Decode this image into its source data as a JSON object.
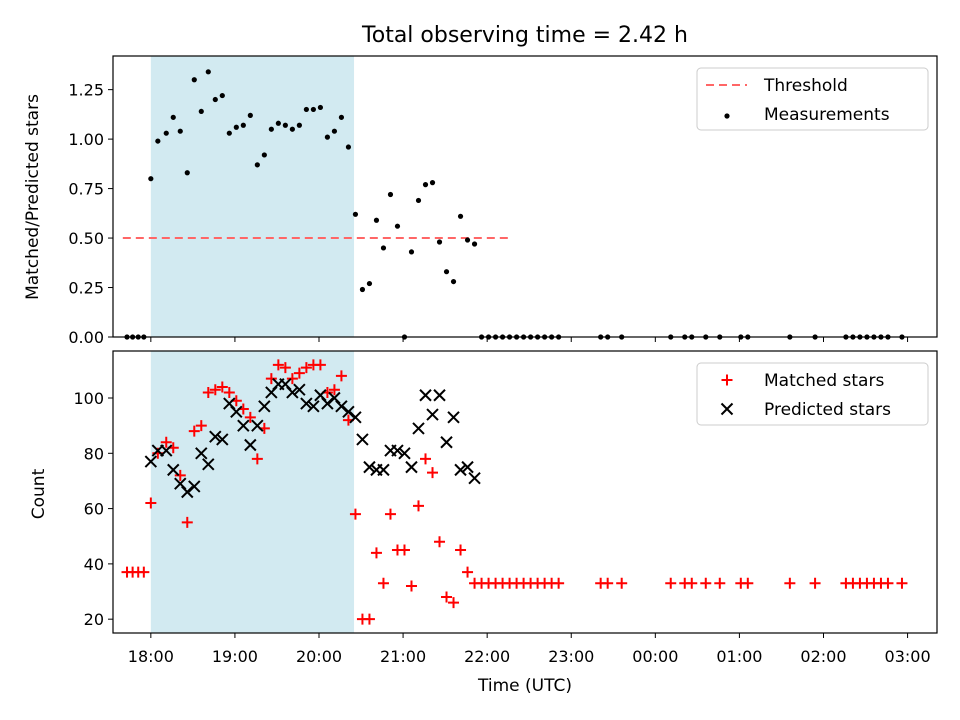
{
  "title": "Total observing time = 2.42 h",
  "xlabel": "Time (UTC)",
  "x_ticks": [
    "18:00",
    "19:00",
    "20:00",
    "21:00",
    "22:00",
    "23:00",
    "00:00",
    "01:00",
    "02:00",
    "03:00"
  ],
  "colors": {
    "shade": "#add8e6",
    "threshold": "#ff6666",
    "measurements": "#000000",
    "matched": "#ff0000",
    "predicted": "#000000"
  },
  "chart_data": [
    {
      "type": "scatter",
      "ylabel": "Matched/Predicted stars",
      "x_range": [
        "17:33",
        "03:21"
      ],
      "ylim": [
        0,
        1.42
      ],
      "y_ticks": [
        "0.00",
        "0.25",
        "0.50",
        "0.75",
        "1.00",
        "1.25"
      ],
      "shaded_region": [
        "18:00",
        "20:25"
      ],
      "threshold": {
        "label": "Threshold",
        "value": 0.5,
        "x_start": "17:40",
        "x_end": "22:15"
      },
      "legend": {
        "position": "top-right",
        "entries": [
          "Threshold",
          "Measurements"
        ]
      },
      "series": [
        {
          "name": "Measurements",
          "points": [
            [
              "17:43",
              0
            ],
            [
              "17:47",
              0
            ],
            [
              "17:51",
              0
            ],
            [
              "17:55",
              0
            ],
            [
              "18:00",
              0.8
            ],
            [
              "18:05",
              0.99
            ],
            [
              "18:11",
              1.03
            ],
            [
              "18:16",
              1.11
            ],
            [
              "18:21",
              1.04
            ],
            [
              "18:26",
              0.83
            ],
            [
              "18:31",
              1.3
            ],
            [
              "18:36",
              1.14
            ],
            [
              "18:41",
              1.34
            ],
            [
              "18:46",
              1.2
            ],
            [
              "18:51",
              1.22
            ],
            [
              "18:56",
              1.03
            ],
            [
              "19:01",
              1.06
            ],
            [
              "19:06",
              1.07
            ],
            [
              "19:11",
              1.12
            ],
            [
              "19:16",
              0.87
            ],
            [
              "19:21",
              0.92
            ],
            [
              "19:26",
              1.05
            ],
            [
              "19:31",
              1.08
            ],
            [
              "19:36",
              1.07
            ],
            [
              "19:41",
              1.05
            ],
            [
              "19:46",
              1.07
            ],
            [
              "19:51",
              1.15
            ],
            [
              "19:56",
              1.15
            ],
            [
              "20:01",
              1.16
            ],
            [
              "20:06",
              1.01
            ],
            [
              "20:11",
              1.04
            ],
            [
              "20:16",
              1.11
            ],
            [
              "20:21",
              0.96
            ],
            [
              "20:26",
              0.62
            ],
            [
              "20:31",
              0.24
            ],
            [
              "20:36",
              0.27
            ],
            [
              "20:41",
              0.59
            ],
            [
              "20:46",
              0.45
            ],
            [
              "20:51",
              0.72
            ],
            [
              "20:56",
              0.56
            ],
            [
              "21:01",
              0
            ],
            [
              "21:06",
              0.43
            ],
            [
              "21:11",
              0.69
            ],
            [
              "21:16",
              0.77
            ],
            [
              "21:21",
              0.78
            ],
            [
              "21:26",
              0.48
            ],
            [
              "21:31",
              0.33
            ],
            [
              "21:36",
              0.28
            ],
            [
              "21:41",
              0.61
            ],
            [
              "21:46",
              0.49
            ],
            [
              "21:51",
              0.47
            ],
            [
              "21:56",
              0
            ],
            [
              "22:01",
              0
            ],
            [
              "22:06",
              0
            ],
            [
              "22:11",
              0
            ],
            [
              "22:16",
              0
            ],
            [
              "22:21",
              0
            ],
            [
              "22:26",
              0
            ],
            [
              "22:31",
              0
            ],
            [
              "22:36",
              0
            ],
            [
              "22:41",
              0
            ],
            [
              "22:46",
              0
            ],
            [
              "22:51",
              0
            ],
            [
              "23:21",
              0
            ],
            [
              "23:26",
              0
            ],
            [
              "23:36",
              0
            ],
            [
              "00:11",
              0
            ],
            [
              "00:21",
              0
            ],
            [
              "00:26",
              0
            ],
            [
              "00:36",
              0
            ],
            [
              "00:46",
              0
            ],
            [
              "01:01",
              0
            ],
            [
              "01:06",
              0
            ],
            [
              "01:36",
              0
            ],
            [
              "01:54",
              0
            ],
            [
              "02:16",
              0
            ],
            [
              "02:21",
              0
            ],
            [
              "02:26",
              0
            ],
            [
              "02:31",
              0
            ],
            [
              "02:36",
              0
            ],
            [
              "02:41",
              0
            ],
            [
              "02:46",
              0
            ],
            [
              "02:56",
              0
            ]
          ]
        }
      ]
    },
    {
      "type": "scatter",
      "ylabel": "Count",
      "x_range": [
        "17:33",
        "03:21"
      ],
      "ylim": [
        15,
        117
      ],
      "y_ticks": [
        "20",
        "40",
        "60",
        "80",
        "100"
      ],
      "shaded_region": [
        "18:00",
        "20:25"
      ],
      "legend": {
        "position": "top-right",
        "entries": [
          "Matched stars",
          "Predicted stars"
        ]
      },
      "series": [
        {
          "name": "Matched stars",
          "points": [
            [
              "17:43",
              37
            ],
            [
              "17:47",
              37
            ],
            [
              "17:51",
              37
            ],
            [
              "17:55",
              37
            ],
            [
              "18:00",
              62
            ],
            [
              "18:05",
              80
            ],
            [
              "18:11",
              84
            ],
            [
              "18:16",
              82
            ],
            [
              "18:21",
              72
            ],
            [
              "18:26",
              55
            ],
            [
              "18:31",
              88
            ],
            [
              "18:36",
              90
            ],
            [
              "18:41",
              102
            ],
            [
              "18:46",
              103
            ],
            [
              "18:51",
              104
            ],
            [
              "18:56",
              102
            ],
            [
              "19:01",
              99
            ],
            [
              "19:06",
              96
            ],
            [
              "19:11",
              93
            ],
            [
              "19:16",
              78
            ],
            [
              "19:21",
              89
            ],
            [
              "19:26",
              107
            ],
            [
              "19:31",
              112
            ],
            [
              "19:36",
              111
            ],
            [
              "19:41",
              107
            ],
            [
              "19:46",
              109
            ],
            [
              "19:51",
              111
            ],
            [
              "19:56",
              112
            ],
            [
              "20:01",
              112
            ],
            [
              "20:06",
              102
            ],
            [
              "20:11",
              103
            ],
            [
              "20:16",
              108
            ],
            [
              "20:21",
              92
            ],
            [
              "20:26",
              58
            ],
            [
              "20:31",
              20
            ],
            [
              "20:36",
              20
            ],
            [
              "20:41",
              44
            ],
            [
              "20:46",
              33
            ],
            [
              "20:51",
              58
            ],
            [
              "20:56",
              45
            ],
            [
              "21:01",
              45
            ],
            [
              "21:06",
              32
            ],
            [
              "21:11",
              61
            ],
            [
              "21:16",
              78
            ],
            [
              "21:21",
              73
            ],
            [
              "21:26",
              48
            ],
            [
              "21:31",
              28
            ],
            [
              "21:36",
              26
            ],
            [
              "21:41",
              45
            ],
            [
              "21:46",
              37
            ],
            [
              "21:51",
              33
            ],
            [
              "21:56",
              33
            ],
            [
              "22:01",
              33
            ],
            [
              "22:06",
              33
            ],
            [
              "22:11",
              33
            ],
            [
              "22:16",
              33
            ],
            [
              "22:21",
              33
            ],
            [
              "22:26",
              33
            ],
            [
              "22:31",
              33
            ],
            [
              "22:36",
              33
            ],
            [
              "22:41",
              33
            ],
            [
              "22:46",
              33
            ],
            [
              "22:51",
              33
            ],
            [
              "23:21",
              33
            ],
            [
              "23:26",
              33
            ],
            [
              "23:36",
              33
            ],
            [
              "00:11",
              33
            ],
            [
              "00:21",
              33
            ],
            [
              "00:26",
              33
            ],
            [
              "00:36",
              33
            ],
            [
              "00:46",
              33
            ],
            [
              "01:01",
              33
            ],
            [
              "01:06",
              33
            ],
            [
              "01:36",
              33
            ],
            [
              "01:54",
              33
            ],
            [
              "02:16",
              33
            ],
            [
              "02:21",
              33
            ],
            [
              "02:26",
              33
            ],
            [
              "02:31",
              33
            ],
            [
              "02:36",
              33
            ],
            [
              "02:41",
              33
            ],
            [
              "02:46",
              33
            ],
            [
              "02:56",
              33
            ]
          ]
        },
        {
          "name": "Predicted stars",
          "points": [
            [
              "18:00",
              77
            ],
            [
              "18:05",
              81
            ],
            [
              "18:11",
              81
            ],
            [
              "18:16",
              74
            ],
            [
              "18:21",
              69
            ],
            [
              "18:26",
              66
            ],
            [
              "18:31",
              68
            ],
            [
              "18:36",
              80
            ],
            [
              "18:41",
              76
            ],
            [
              "18:46",
              86
            ],
            [
              "18:51",
              85
            ],
            [
              "18:56",
              98
            ],
            [
              "19:01",
              95
            ],
            [
              "19:06",
              90
            ],
            [
              "19:11",
              83
            ],
            [
              "19:16",
              90
            ],
            [
              "19:21",
              97
            ],
            [
              "19:26",
              102
            ],
            [
              "19:31",
              105
            ],
            [
              "19:36",
              105
            ],
            [
              "19:41",
              102
            ],
            [
              "19:46",
              103
            ],
            [
              "19:51",
              98
            ],
            [
              "19:56",
              97
            ],
            [
              "20:01",
              101
            ],
            [
              "20:06",
              98
            ],
            [
              "20:11",
              100
            ],
            [
              "20:16",
              97
            ],
            [
              "20:21",
              95
            ],
            [
              "20:26",
              93
            ],
            [
              "20:31",
              85
            ],
            [
              "20:36",
              75
            ],
            [
              "20:41",
              74
            ],
            [
              "20:46",
              74
            ],
            [
              "20:51",
              81
            ],
            [
              "20:56",
              81
            ],
            [
              "21:01",
              80
            ],
            [
              "21:06",
              75
            ],
            [
              "21:11",
              89
            ],
            [
              "21:16",
              101
            ],
            [
              "21:21",
              94
            ],
            [
              "21:26",
              101
            ],
            [
              "21:31",
              84
            ],
            [
              "21:36",
              93
            ],
            [
              "21:41",
              74
            ],
            [
              "21:46",
              75
            ],
            [
              "21:51",
              71
            ]
          ]
        }
      ]
    }
  ]
}
